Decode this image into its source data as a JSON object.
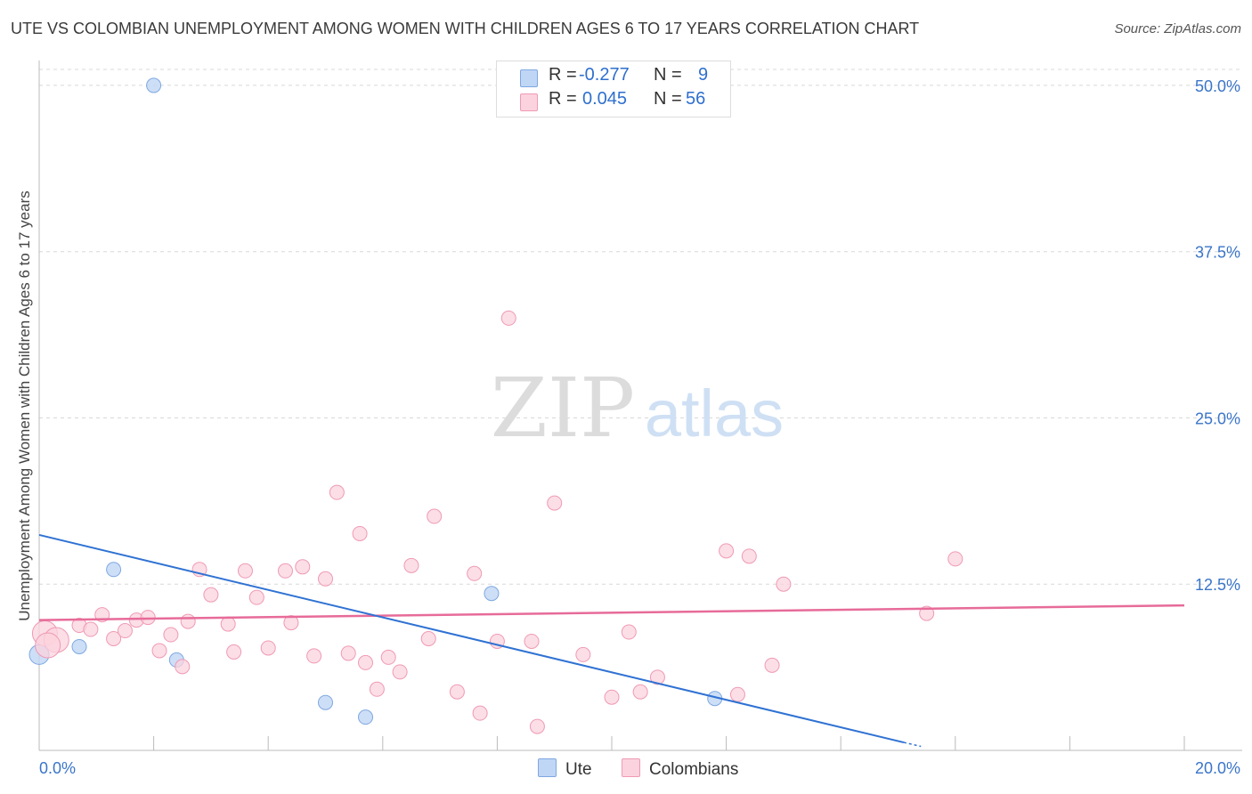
{
  "title": "UTE VS COLOMBIAN UNEMPLOYMENT AMONG WOMEN WITH CHILDREN AGES 6 TO 17 YEARS CORRELATION CHART",
  "source": "Source: ZipAtlas.com",
  "watermark": {
    "zip": "ZIP",
    "atlas": "atlas"
  },
  "legend": {
    "rows": [
      {
        "r_label": "R =",
        "r_value": "-0.277",
        "n_label": "N =",
        "n_value": "9",
        "color": "#aac8f0",
        "border": "#7ea8e0"
      },
      {
        "r_label": "R =",
        "r_value": "0.045",
        "n_label": "N =",
        "n_value": "56",
        "color": "#f9c7d5",
        "border": "#ef9ab4"
      }
    ]
  },
  "bottom_legend": {
    "ute": "Ute",
    "colombians": "Colombians"
  },
  "colors": {
    "ute_fill": "#c0d6f5",
    "ute_stroke": "#7ea8e0",
    "ute_line": "#2f72d3",
    "col_fill": "#fbd3de",
    "col_stroke": "#ef9ab4",
    "col_line": "#e76b99",
    "tick_text": "#3a75c9",
    "grid": "#d8d8d8"
  },
  "chart_data": {
    "type": "scatter",
    "title": "UTE VS COLOMBIAN UNEMPLOYMENT AMONG WOMEN WITH CHILDREN AGES 6 TO 17 YEARS CORRELATION CHART",
    "xlabel": "",
    "ylabel": "Unemployment Among Women with Children Ages 6 to 17 years",
    "xlim": [
      0,
      20
    ],
    "ylim": [
      0,
      51.2
    ],
    "x_tick_labels": [
      "0.0%",
      "20.0%"
    ],
    "y_ticks": [
      12.5,
      25.0,
      37.5,
      50.0
    ],
    "y_tick_labels": [
      "12.5%",
      "25.0%",
      "37.5%",
      "50.0%"
    ],
    "grid": "horizontal dashed",
    "legend_placement": "bottom-center",
    "series": [
      {
        "name": "Ute",
        "points": [
          [
            0.0,
            7.2
          ],
          [
            0.7,
            7.8
          ],
          [
            1.3,
            13.6
          ],
          [
            2.0,
            50.0
          ],
          [
            2.4,
            6.8
          ],
          [
            5.0,
            3.6
          ],
          [
            5.7,
            2.5
          ],
          [
            7.9,
            11.8
          ],
          [
            11.8,
            3.9
          ]
        ],
        "trend": {
          "x": [
            0.0,
            15.1
          ],
          "y": [
            16.2,
            0.6
          ],
          "dashed_to": [
            15.4,
            0.3
          ]
        }
      },
      {
        "name": "Colombians",
        "points": [
          [
            0.1,
            8.8
          ],
          [
            0.3,
            8.3
          ],
          [
            0.7,
            9.4
          ],
          [
            0.9,
            9.1
          ],
          [
            1.1,
            10.2
          ],
          [
            1.3,
            8.4
          ],
          [
            1.5,
            9.0
          ],
          [
            1.7,
            9.8
          ],
          [
            1.9,
            10.0
          ],
          [
            2.1,
            7.5
          ],
          [
            2.3,
            8.7
          ],
          [
            2.5,
            6.3
          ],
          [
            2.6,
            9.7
          ],
          [
            2.8,
            13.6
          ],
          [
            3.0,
            11.7
          ],
          [
            3.3,
            9.5
          ],
          [
            3.4,
            7.4
          ],
          [
            3.6,
            13.5
          ],
          [
            3.8,
            11.5
          ],
          [
            4.0,
            7.7
          ],
          [
            4.3,
            13.5
          ],
          [
            4.4,
            9.6
          ],
          [
            4.6,
            13.8
          ],
          [
            4.8,
            7.1
          ],
          [
            5.0,
            12.9
          ],
          [
            5.2,
            19.4
          ],
          [
            5.4,
            7.3
          ],
          [
            5.6,
            16.3
          ],
          [
            5.7,
            6.6
          ],
          [
            5.9,
            4.6
          ],
          [
            6.1,
            7.0
          ],
          [
            6.3,
            5.9
          ],
          [
            6.5,
            13.9
          ],
          [
            6.8,
            8.4
          ],
          [
            6.9,
            17.6
          ],
          [
            7.3,
            4.4
          ],
          [
            7.6,
            13.3
          ],
          [
            7.7,
            2.8
          ],
          [
            8.0,
            8.2
          ],
          [
            8.2,
            32.5
          ],
          [
            8.6,
            8.2
          ],
          [
            8.7,
            1.8
          ],
          [
            9.0,
            18.6
          ],
          [
            9.5,
            7.2
          ],
          [
            10.0,
            4.0
          ],
          [
            10.3,
            8.9
          ],
          [
            10.5,
            4.4
          ],
          [
            10.8,
            5.5
          ],
          [
            12.0,
            15.0
          ],
          [
            12.2,
            4.2
          ],
          [
            12.4,
            14.6
          ],
          [
            12.8,
            6.4
          ],
          [
            13.0,
            12.5
          ],
          [
            15.5,
            10.3
          ],
          [
            16.0,
            14.4
          ],
          [
            0.15,
            7.9
          ]
        ],
        "trend": {
          "x": [
            0.0,
            20.0
          ],
          "y": [
            9.8,
            10.9
          ]
        }
      }
    ]
  }
}
